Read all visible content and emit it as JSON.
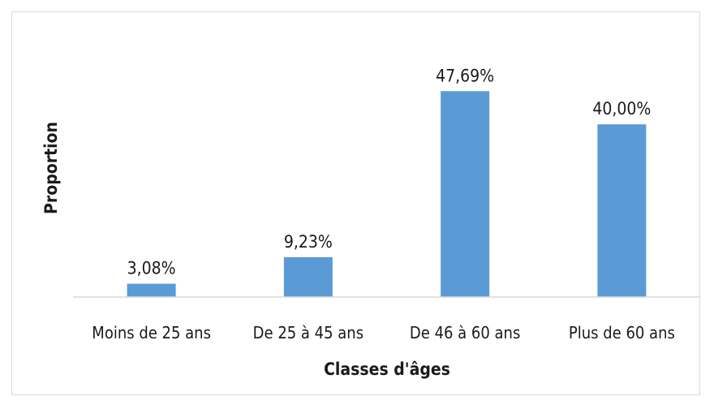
{
  "chart_data": {
    "type": "bar",
    "categories": [
      "Moins de 25 ans",
      "De 25 à 45 ans",
      "De 46 à 60 ans",
      "Plus de 60 ans"
    ],
    "values": [
      3.08,
      9.23,
      47.69,
      40.0
    ],
    "data_labels": [
      "3,08%",
      "9,23%",
      "47,69%",
      "40,00%"
    ],
    "xlabel": "Classes d'âges",
    "ylabel": "Proportion",
    "ylim": [
      0,
      50
    ],
    "grid": false,
    "legend": "none",
    "bar_color": "#5b9bd5",
    "axis_color": "#d9d9d9"
  }
}
